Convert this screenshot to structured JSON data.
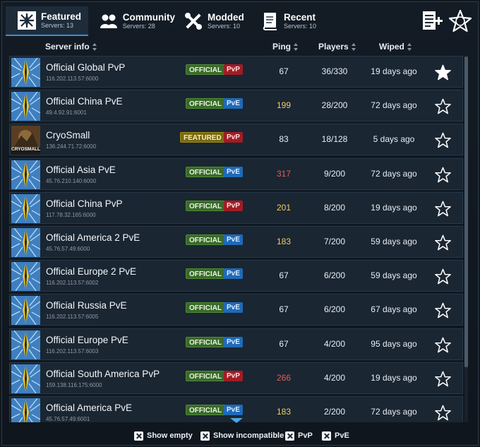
{
  "tabs": [
    {
      "name": "Featured",
      "count": "Servers: 13",
      "icon": "featured-icon"
    },
    {
      "name": "Community",
      "count": "Servers: 28",
      "icon": "community-icon"
    },
    {
      "name": "Modded",
      "count": "Servers: 10",
      "icon": "modded-icon"
    },
    {
      "name": "Recent",
      "count": "Servers: 10",
      "icon": "recent-icon"
    }
  ],
  "tools": {
    "add_icon": "add-server-icon",
    "fav_icon": "favorites-star-icon"
  },
  "columns": {
    "server_info": "Server info",
    "ping": "Ping",
    "players": "Players",
    "wiped": "Wiped"
  },
  "colors": {
    "ping_good": "#e8eef4",
    "ping_mid": "#f0d060",
    "ping_bad": "#e0605a",
    "accent": "#3b8fd6"
  },
  "servers": [
    {
      "name": "Official Global PvP",
      "address": "116.202.113.57:6000",
      "type_badge": "OFFICIAL",
      "mode": "PvP",
      "ping": "67",
      "ping_level": "good",
      "players": "36/330",
      "wiped": "19 days ago",
      "favorite": true,
      "thumb": "official"
    },
    {
      "name": "Official China PvE",
      "address": "49.4.92.91:6001",
      "type_badge": "OFFICIAL",
      "mode": "PvE",
      "ping": "199",
      "ping_level": "mid",
      "players": "28/200",
      "wiped": "72 days ago",
      "favorite": false,
      "thumb": "official"
    },
    {
      "name": "CryoSmall",
      "address": "136.244.71.72:6000",
      "type_badge": "FEATURED",
      "mode": "PvP",
      "ping": "83",
      "ping_level": "good",
      "players": "18/128",
      "wiped": "5 days ago",
      "favorite": false,
      "thumb": "cryosmall",
      "thumb_text": "CRYOSMALL"
    },
    {
      "name": "Official Asia PvE",
      "address": "45.76.210.140:6000",
      "type_badge": "OFFICIAL",
      "mode": "PvE",
      "ping": "317",
      "ping_level": "bad",
      "players": "9/200",
      "wiped": "72 days ago",
      "favorite": false,
      "thumb": "official"
    },
    {
      "name": "Official China PvP",
      "address": "117.78.32.165:6000",
      "type_badge": "OFFICIAL",
      "mode": "PvP",
      "ping": "201",
      "ping_level": "mid",
      "players": "8/200",
      "wiped": "19 days ago",
      "favorite": false,
      "thumb": "official"
    },
    {
      "name": "Official America 2 PvE",
      "address": "45.76.57.49:6000",
      "type_badge": "OFFICIAL",
      "mode": "PvE",
      "ping": "183",
      "ping_level": "mid",
      "players": "7/200",
      "wiped": "59 days ago",
      "favorite": false,
      "thumb": "official"
    },
    {
      "name": "Official Europe 2 PvE",
      "address": "116.202.113.57:6002",
      "type_badge": "OFFICIAL",
      "mode": "PvE",
      "ping": "67",
      "ping_level": "good",
      "players": "6/200",
      "wiped": "59 days ago",
      "favorite": false,
      "thumb": "official"
    },
    {
      "name": "Official Russia PvE",
      "address": "116.202.113.57:6005",
      "type_badge": "OFFICIAL",
      "mode": "PvE",
      "ping": "67",
      "ping_level": "good",
      "players": "6/200",
      "wiped": "67 days ago",
      "favorite": false,
      "thumb": "official"
    },
    {
      "name": "Official Europe PvE",
      "address": "116.202.113.57:6003",
      "type_badge": "OFFICIAL",
      "mode": "PvE",
      "ping": "67",
      "ping_level": "good",
      "players": "4/200",
      "wiped": "95 days ago",
      "favorite": false,
      "thumb": "official"
    },
    {
      "name": "Official South America PvP",
      "address": "159.138.116.175:6000",
      "type_badge": "OFFICIAL",
      "mode": "PvP",
      "ping": "266",
      "ping_level": "bad",
      "players": "4/200",
      "wiped": "19 days ago",
      "favorite": false,
      "thumb": "official"
    },
    {
      "name": "Official America PvE",
      "address": "45.76.57.49:6001",
      "type_badge": "OFFICIAL",
      "mode": "PvE",
      "ping": "183",
      "ping_level": "mid",
      "players": "2/200",
      "wiped": "72 days ago",
      "favorite": false,
      "thumb": "official"
    }
  ],
  "filters": [
    {
      "label": "Show empty",
      "checked": true
    },
    {
      "label": "Show incompatible",
      "checked": true
    },
    {
      "label": "PvP",
      "checked": true
    },
    {
      "label": "PvE",
      "checked": true
    }
  ]
}
